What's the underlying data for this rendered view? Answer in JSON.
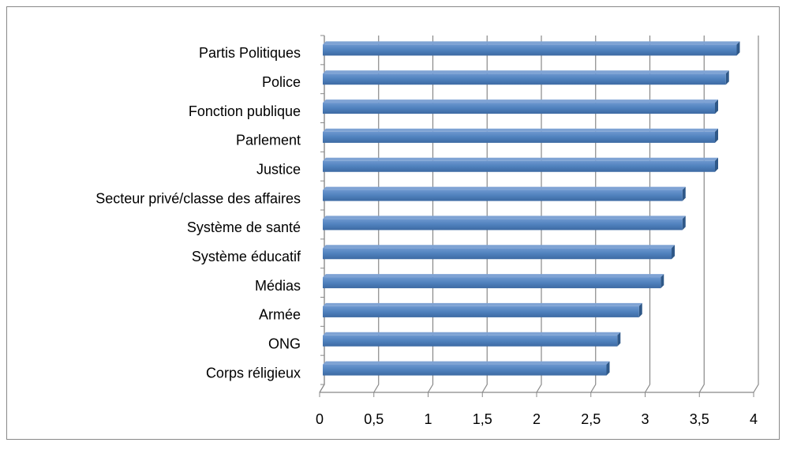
{
  "chart_data": {
    "type": "bar",
    "orientation": "horizontal",
    "categories": [
      "Partis Politiques",
      "Police",
      "Fonction publique",
      "Parlement",
      "Justice",
      "Secteur privé/classe des affaires",
      "Système de santé",
      "Système éducatif",
      "Médias",
      "Armée",
      "ONG",
      "Corps réligieux"
    ],
    "values": [
      3.8,
      3.7,
      3.6,
      3.6,
      3.6,
      3.3,
      3.3,
      3.2,
      3.1,
      2.9,
      2.7,
      2.6
    ],
    "color": "#4f81bd",
    "xlim": [
      0,
      4
    ],
    "xticks": [
      0,
      {
        "value": 0.5,
        "label": "0,5"
      },
      1,
      {
        "value": 1.5,
        "label": "1,5"
      },
      2,
      {
        "value": 2.5,
        "label": "2,5"
      },
      3,
      {
        "value": 3.5,
        "label": "3,5"
      },
      4
    ],
    "grid": true
  }
}
